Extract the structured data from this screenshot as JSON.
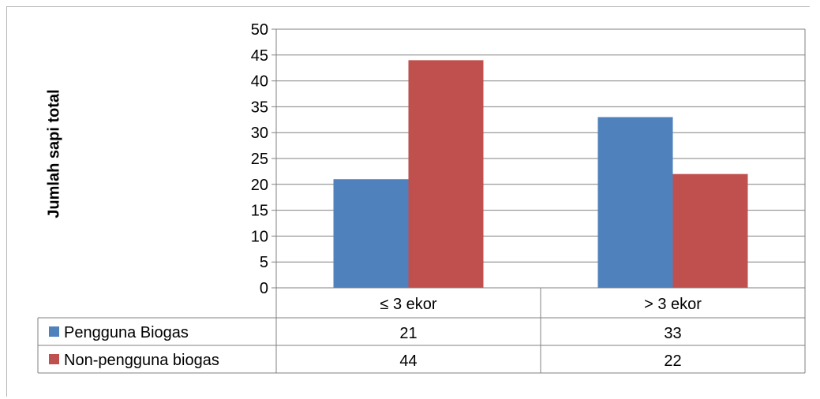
{
  "chart_data": {
    "type": "bar",
    "categories": [
      "≤ 3 ekor",
      "> 3 ekor"
    ],
    "series": [
      {
        "name": "Pengguna Biogas",
        "values": [
          21,
          33
        ],
        "color": "#4f81bd"
      },
      {
        "name": "Non-pengguna biogas",
        "values": [
          44,
          22
        ],
        "color": "#c0504d"
      }
    ],
    "ylabel": "Jumlah sapi total",
    "xlabel": "",
    "ylim": [
      0,
      50
    ],
    "yticks": [
      0,
      5,
      10,
      15,
      20,
      25,
      30,
      35,
      40,
      45,
      50
    ],
    "grid": true,
    "legend": "data-table"
  }
}
